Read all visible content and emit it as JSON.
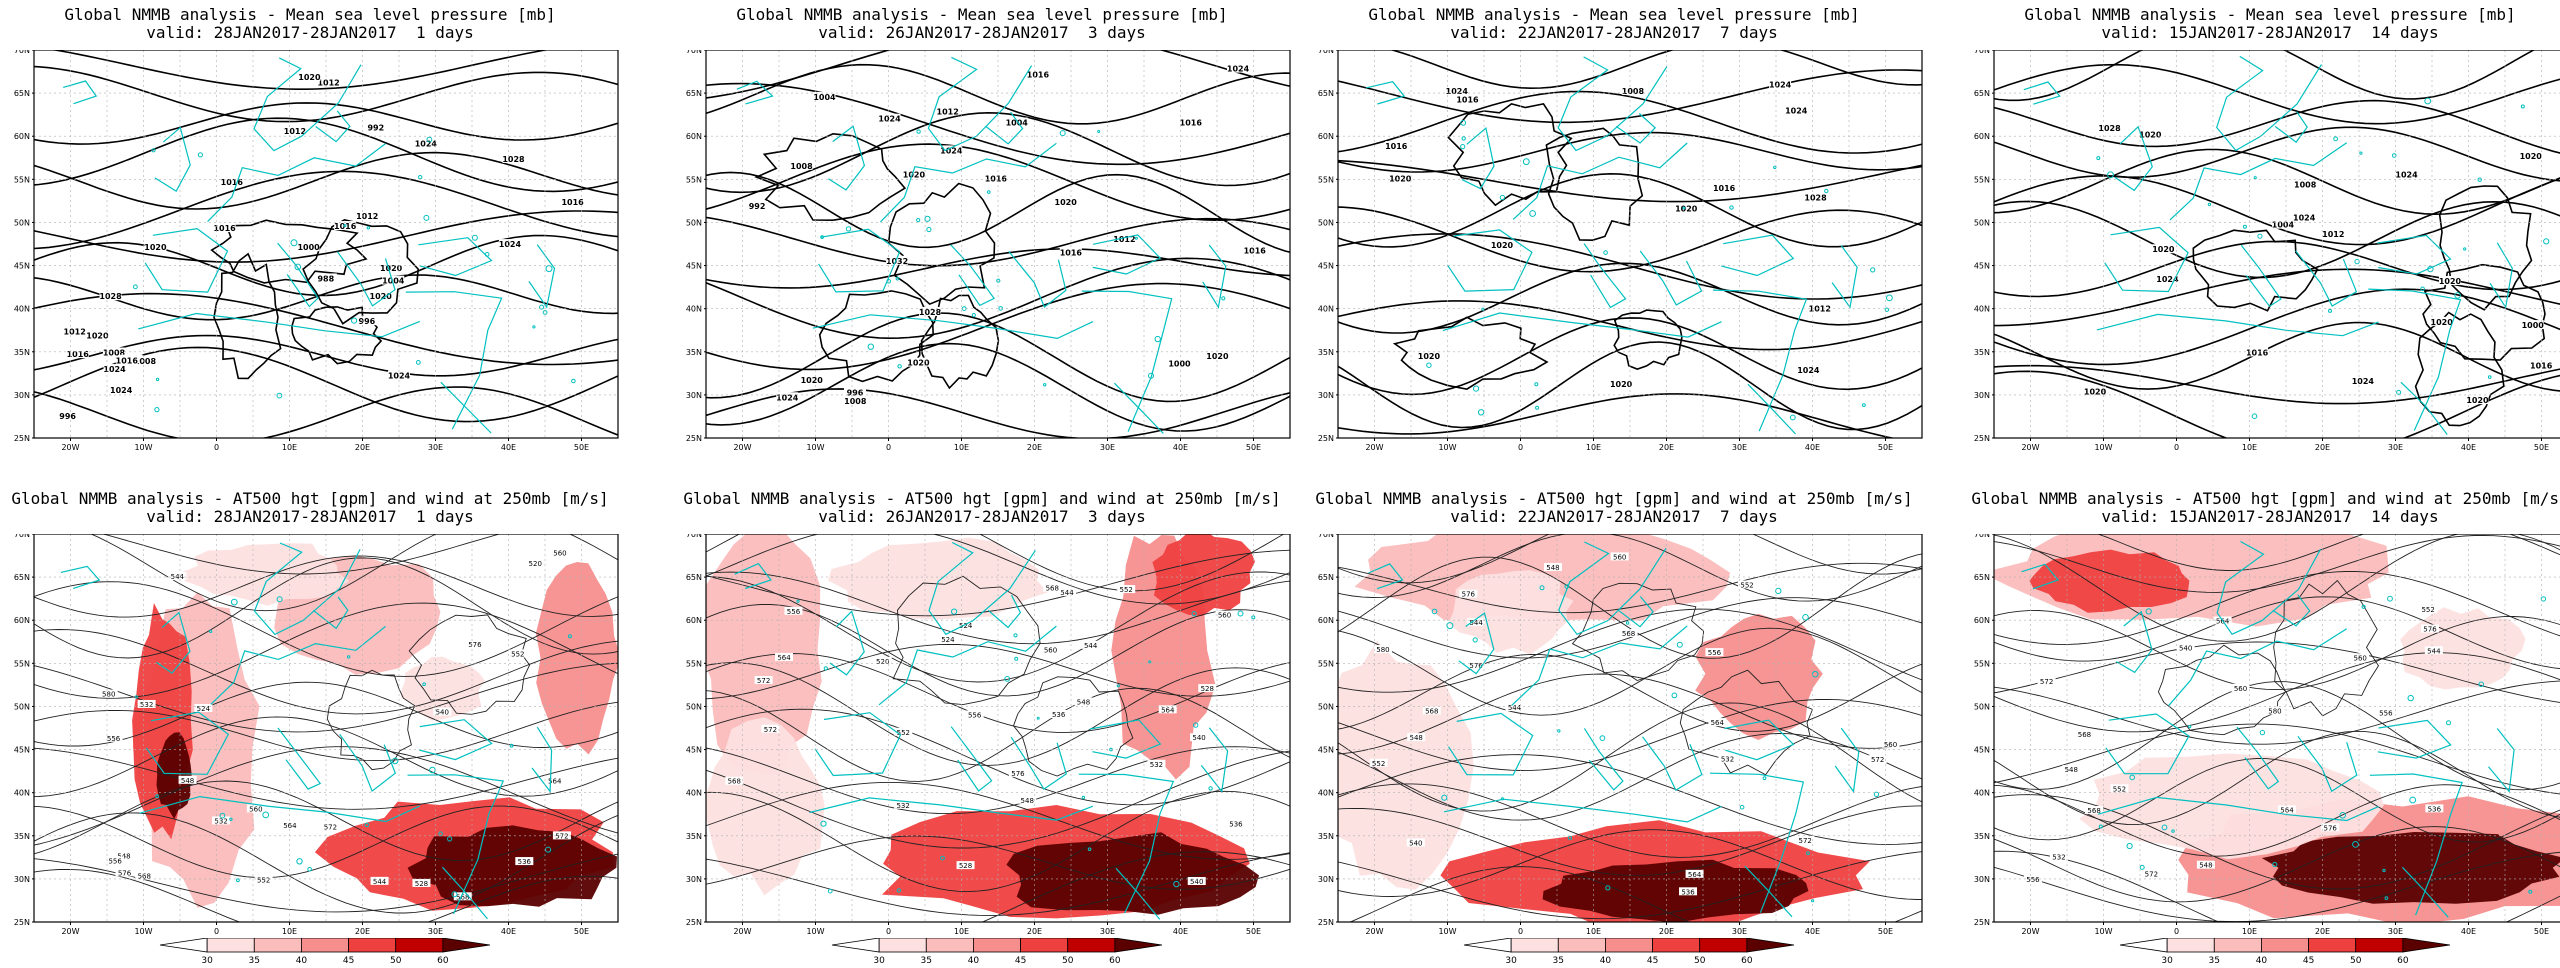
{
  "colors": {
    "coast": "#00c0c0",
    "contour": "#000000",
    "grid": "#b0b0b0",
    "wind_30": "#fde0e0",
    "wind_35": "#fbbcbc",
    "wind_40": "#f78e8e",
    "wind_45": "#ef4040",
    "wind_50": "#c00000",
    "wind_60": "#5a0000"
  },
  "axes": {
    "lat_labels": [
      "70N",
      "65N",
      "60N",
      "55N",
      "50N",
      "45N",
      "40N",
      "35N",
      "30N",
      "25N"
    ],
    "lon_labels": [
      "20W",
      "10W",
      "0",
      "10E",
      "20E",
      "30E",
      "40E",
      "50E"
    ]
  },
  "colorbar": {
    "labels": [
      "30",
      "35",
      "40",
      "45",
      "50",
      "60"
    ]
  },
  "panels": [
    {
      "id": "mslp-1d",
      "title": "Global NMMB analysis - Mean sea level pressure [mb]",
      "subtitle": "valid: 28JAN2017-28JAN2017  1 days",
      "contour_labels": [
        "996",
        "992",
        "988",
        "996",
        "1000",
        "1004",
        "1008",
        "1012",
        "1016",
        "1020",
        "1024",
        "1028",
        "1012",
        "1016",
        "1020",
        "1024",
        "1016",
        "1020",
        "1024",
        "1012",
        "1016",
        "1020",
        "1012",
        "1016",
        "1024",
        "1028",
        "1008",
        "1016",
        "1024",
        "1016",
        "1020"
      ]
    },
    {
      "id": "mslp-3d",
      "title": "Global NMMB analysis - Mean sea level pressure [mb]",
      "subtitle": "valid: 26JAN2017-28JAN2017  3 days",
      "contour_labels": [
        "992",
        "996",
        "1000",
        "1004",
        "1008",
        "1012",
        "1016",
        "1020",
        "1012",
        "1016",
        "1008",
        "1004",
        "1020",
        "1024",
        "1028",
        "1032",
        "1024",
        "1020",
        "1016",
        "1020",
        "1024",
        "1016",
        "1016",
        "1020",
        "1024"
      ]
    },
    {
      "id": "mslp-7d",
      "title": "Global NMMB analysis - Mean sea level pressure [mb]",
      "subtitle": "valid: 22JAN2017-28JAN2017  7 days",
      "contour_labels": [
        "1008",
        "1012",
        "1016",
        "1020",
        "1024",
        "1028",
        "1016",
        "1020",
        "1024",
        "1024",
        "1020",
        "1020",
        "1016",
        "1024",
        "1020"
      ]
    },
    {
      "id": "mslp-14d",
      "title": "Global NMMB analysis - Mean sea level pressure [mb]",
      "subtitle": "valid: 15JAN2017-28JAN2017  14 days",
      "contour_labels": [
        "1000",
        "1004",
        "1008",
        "1012",
        "1016",
        "1020",
        "1024",
        "1028",
        "1024",
        "1020",
        "1016",
        "1020",
        "1024",
        "1020",
        "1020",
        "1024",
        "1020",
        "1020"
      ]
    },
    {
      "id": "z500-1d",
      "title": "Global NMMB analysis - AT500 hgt [gpm] and wind at 250mb [m/s]",
      "subtitle": "valid: 28JAN2017-28JAN2017  1 days",
      "contour_labels": [
        "520",
        "524",
        "528",
        "532",
        "536",
        "540",
        "544",
        "548",
        "552",
        "556",
        "560",
        "564",
        "568",
        "572",
        "576",
        "580",
        "532",
        "544",
        "548",
        "552",
        "556",
        "560",
        "564",
        "568",
        "572",
        "576"
      ]
    },
    {
      "id": "z500-3d",
      "title": "Global NMMB analysis - AT500 hgt [gpm] and wind at 250mb [m/s]",
      "subtitle": "valid: 26JAN2017-28JAN2017  3 days",
      "contour_labels": [
        "520",
        "524",
        "528",
        "532",
        "536",
        "540",
        "544",
        "548",
        "552",
        "556",
        "560",
        "564",
        "568",
        "572",
        "528",
        "524",
        "532",
        "536",
        "540",
        "544",
        "548",
        "552",
        "556",
        "560",
        "564",
        "568",
        "572",
        "576"
      ]
    },
    {
      "id": "z500-7d",
      "title": "Global NMMB analysis - AT500 hgt [gpm] and wind at 250mb [m/s]",
      "subtitle": "valid: 22JAN2017-28JAN2017  7 days",
      "contour_labels": [
        "532",
        "536",
        "540",
        "544",
        "548",
        "552",
        "556",
        "560",
        "564",
        "568",
        "572",
        "576",
        "580",
        "544",
        "548",
        "552",
        "560",
        "564",
        "568",
        "572",
        "576"
      ]
    },
    {
      "id": "z500-14d",
      "title": "Global NMMB analysis - AT500 hgt [gpm] and wind at 250mb [m/s]",
      "subtitle": "valid: 15JAN2017-28JAN2017  14 days",
      "contour_labels": [
        "532",
        "536",
        "540",
        "544",
        "548",
        "552",
        "556",
        "560",
        "564",
        "568",
        "572",
        "576",
        "580",
        "548",
        "552",
        "556",
        "560",
        "564",
        "568",
        "572",
        "576"
      ]
    }
  ]
}
